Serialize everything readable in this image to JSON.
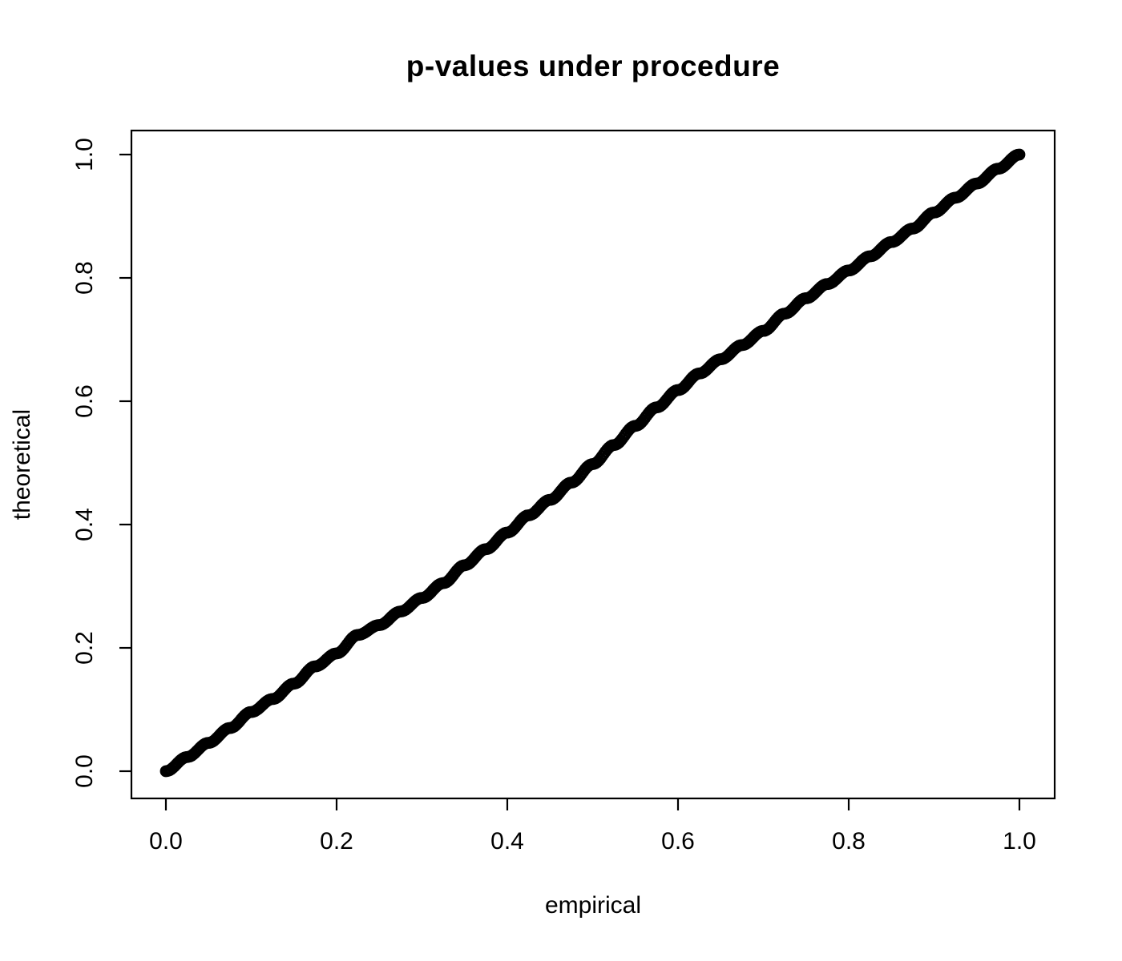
{
  "page": {
    "background": "#ffffff",
    "foreground": "#000000"
  },
  "chart_data": {
    "type": "scatter",
    "title": "p-values under procedure",
    "xlabel": "empirical",
    "ylabel": "theoretical",
    "xlim": [
      0,
      1
    ],
    "ylim": [
      0,
      1
    ],
    "grid": false,
    "frame_box": true,
    "x_ticks": [
      "0.0",
      "0.2",
      "0.4",
      "0.6",
      "0.8",
      "1.0"
    ],
    "x_tick_values": [
      0.0,
      0.2,
      0.4,
      0.6,
      0.8,
      1.0
    ],
    "y_ticks": [
      "0.0",
      "0.2",
      "0.4",
      "0.6",
      "0.8",
      "1.0"
    ],
    "y_tick_values": [
      0.0,
      0.2,
      0.4,
      0.6,
      0.8,
      1.0
    ],
    "marker": "open-circle",
    "marker_color": "#000000",
    "marker_radius_px": 6,
    "marker_stroke_px": 2.8,
    "n_points": 500,
    "anchors": {
      "empirical": [
        0.0,
        0.025,
        0.05,
        0.075,
        0.1,
        0.125,
        0.15,
        0.175,
        0.2,
        0.225,
        0.25,
        0.275,
        0.3,
        0.325,
        0.35,
        0.375,
        0.4,
        0.425,
        0.45,
        0.475,
        0.5,
        0.525,
        0.55,
        0.575,
        0.6,
        0.625,
        0.65,
        0.675,
        0.7,
        0.725,
        0.75,
        0.775,
        0.8,
        0.825,
        0.85,
        0.875,
        0.9,
        0.925,
        0.95,
        0.975,
        1.0
      ],
      "theoretical": [
        0.0,
        0.023,
        0.046,
        0.07,
        0.096,
        0.117,
        0.142,
        0.17,
        0.191,
        0.221,
        0.237,
        0.259,
        0.281,
        0.305,
        0.334,
        0.36,
        0.387,
        0.415,
        0.44,
        0.468,
        0.498,
        0.529,
        0.56,
        0.59,
        0.618,
        0.645,
        0.668,
        0.691,
        0.714,
        0.742,
        0.767,
        0.79,
        0.812,
        0.835,
        0.858,
        0.88,
        0.906,
        0.93,
        0.953,
        0.977,
        1.0
      ]
    }
  }
}
